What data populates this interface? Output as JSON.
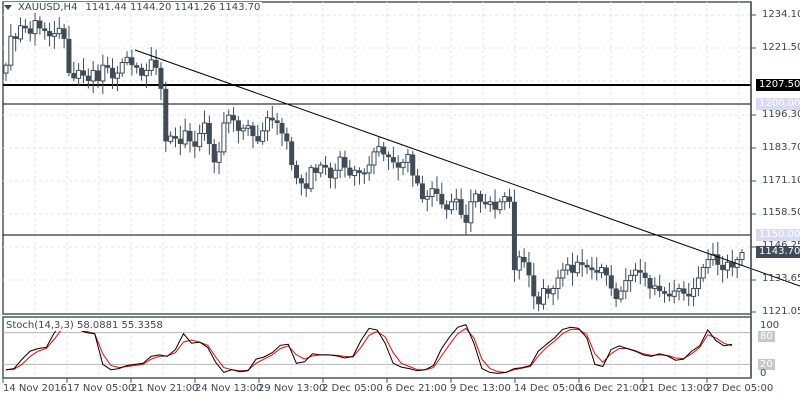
{
  "header": {
    "symbol_timeframe": "XAUUSD,H4",
    "ohlc": "1141.44 1144.20 1141.26 1143.70"
  },
  "stoch": {
    "label": "Stoch(14,3,3) 58.0881 55.3358",
    "levels": [
      "100",
      "80",
      "20",
      "0"
    ]
  },
  "price_axis": {
    "ticks": [
      "1234.10",
      "1221.50",
      "1196.30",
      "1183.70",
      "1171.10",
      "1158.50",
      "1146.25",
      "1133.65",
      "1121.05"
    ],
    "tags": {
      "resistance": "1207.50",
      "level_1200": "1200.00",
      "level_1150": "1150.00",
      "last_price": "1143.70"
    }
  },
  "time_axis": {
    "labels": [
      "14 Nov 2016",
      "17 Nov 05:00",
      "21 Nov 21:00",
      "24 Nov 13:00",
      "29 Nov 13:00",
      "2 Dec 05:00",
      "6 Dec 21:00",
      "9 Dec 13:00",
      "14 Dec 05:00",
      "16 Dec 21:00",
      "21 Dec 13:00",
      "27 Dec 05:00"
    ]
  },
  "colors": {
    "candle": "#3f4b57",
    "stoch_main": "#000000",
    "stoch_signal": "#ff0000",
    "grid": "#e6e6e6"
  },
  "chart_data": {
    "type": "candlestick",
    "title": "XAUUSD,H4",
    "ylim": [
      1121.05,
      1234.1
    ],
    "horizontal_lines": [
      1207.5,
      1200.0,
      1150.0
    ],
    "trendline": {
      "from": [
        135,
        1215.5
      ],
      "to": [
        800,
        1130.5
      ]
    },
    "last_price": 1143.7,
    "x_labels": [
      "14 Nov 2016",
      "17 Nov 05:00",
      "21 Nov 21:00",
      "24 Nov 13:00",
      "29 Nov 13:00",
      "2 Dec 05:00",
      "6 Dec 21:00",
      "9 Dec 13:00",
      "14 Dec 05:00",
      "16 Dec 21:00",
      "21 Dec 13:00",
      "27 Dec 05:00"
    ],
    "closes": [
      1215,
      1226,
      1225,
      1230,
      1229,
      1227,
      1232,
      1229,
      1228,
      1226,
      1227,
      1229,
      1225,
      1212,
      1210,
      1213,
      1211,
      1209,
      1213,
      1209,
      1215,
      1214,
      1210,
      1212,
      1216,
      1218,
      1215,
      1214,
      1211,
      1213,
      1217,
      1214,
      1206,
      1186,
      1188,
      1187,
      1185,
      1190,
      1186,
      1184,
      1189,
      1193,
      1185,
      1178,
      1182,
      1193,
      1196,
      1194,
      1190,
      1191,
      1192,
      1188,
      1186,
      1190,
      1195,
      1194,
      1193,
      1189,
      1186,
      1177,
      1172,
      1170,
      1168,
      1176,
      1174,
      1177,
      1176,
      1172,
      1175,
      1180,
      1176,
      1173,
      1175,
      1174,
      1174,
      1177,
      1182,
      1184,
      1181,
      1180,
      1178,
      1176,
      1178,
      1181,
      1173,
      1170,
      1164,
      1165,
      1168,
      1166,
      1162,
      1160,
      1163,
      1164,
      1158,
      1155,
      1163,
      1166,
      1163,
      1162,
      1163,
      1160,
      1163,
      1165,
      1163,
      1137,
      1142,
      1140,
      1135,
      1127,
      1124,
      1130,
      1128,
      1130,
      1134,
      1137,
      1139,
      1136,
      1140,
      1139,
      1138,
      1137,
      1136,
      1138,
      1135,
      1130,
      1126,
      1129,
      1133,
      1135,
      1137,
      1136,
      1134,
      1130,
      1131,
      1129,
      1128,
      1127,
      1129,
      1130,
      1128,
      1127,
      1130,
      1134,
      1138,
      1141,
      1143,
      1139,
      1137,
      1140,
      1138,
      1141,
      1143.7
    ],
    "stoch_main": [
      10,
      12,
      30,
      45,
      50,
      52,
      80,
      98,
      88,
      85,
      80,
      78,
      20,
      10,
      12,
      18,
      20,
      22,
      35,
      38,
      35,
      48,
      78,
      60,
      62,
      52,
      24,
      5,
      10,
      6,
      8,
      30,
      34,
      42,
      56,
      58,
      22,
      25,
      40,
      38,
      38,
      36,
      32,
      35,
      65,
      88,
      85,
      60,
      22,
      15,
      12,
      8,
      10,
      18,
      50,
      72,
      90,
      95,
      60,
      12,
      5,
      3,
      5,
      12,
      14,
      18,
      45,
      58,
      70,
      86,
      90,
      88,
      70,
      20,
      16,
      48,
      55,
      50,
      45,
      38,
      35,
      40,
      36,
      28,
      30,
      45,
      55,
      85,
      65,
      55,
      58
    ],
    "stoch_signal": [
      10,
      11,
      20,
      35,
      45,
      50,
      68,
      88,
      88,
      85,
      82,
      78,
      40,
      18,
      14,
      16,
      18,
      20,
      30,
      35,
      36,
      42,
      62,
      66,
      62,
      56,
      34,
      14,
      10,
      8,
      9,
      22,
      30,
      38,
      50,
      55,
      38,
      30,
      36,
      38,
      38,
      37,
      35,
      34,
      52,
      75,
      82,
      72,
      42,
      22,
      16,
      10,
      10,
      14,
      36,
      58,
      78,
      88,
      70,
      30,
      12,
      6,
      5,
      10,
      13,
      16,
      36,
      52,
      64,
      78,
      86,
      86,
      76,
      40,
      24,
      40,
      50,
      50,
      46,
      40,
      37,
      38,
      37,
      32,
      31,
      40,
      52,
      76,
      70,
      60,
      55
    ]
  }
}
